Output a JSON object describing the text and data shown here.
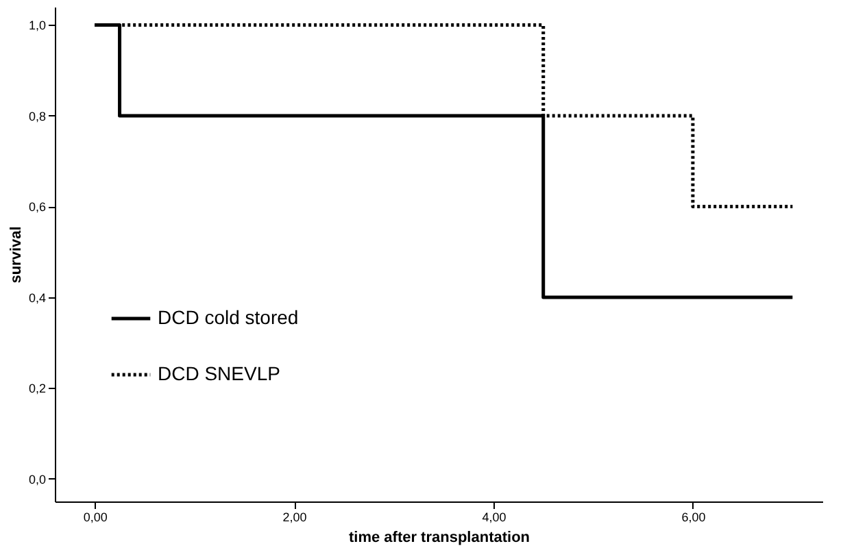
{
  "chart_data": {
    "type": "step",
    "xlabel": "time after transplantation",
    "ylabel": "survival",
    "xlim": [
      -0.4,
      7.3
    ],
    "ylim": [
      -0.05,
      1.04
    ],
    "xticks": [
      {
        "value": 0,
        "label": "0,00"
      },
      {
        "value": 2,
        "label": "2,00"
      },
      {
        "value": 4,
        "label": "4,00"
      },
      {
        "value": 6,
        "label": "6,00"
      }
    ],
    "yticks": [
      {
        "value": 0,
        "label": "0,0"
      },
      {
        "value": 0.2,
        "label": "0,2"
      },
      {
        "value": 0.4,
        "label": "0,4"
      },
      {
        "value": 0.6,
        "label": "0,6"
      },
      {
        "value": 0.8,
        "label": "0,8"
      },
      {
        "value": 1,
        "label": "1,0"
      }
    ],
    "grid": false,
    "legend": "left",
    "marker": "none",
    "series": [
      {
        "name": "DCD cold stored",
        "color": "#000000",
        "line_style": "solid",
        "x": [
          0,
          0.25,
          4.5,
          7.0
        ],
        "values": [
          1,
          0.8,
          0.4,
          0.4
        ]
      },
      {
        "name": "DCD SNEVLP",
        "color": "#000000",
        "line_style": "dotted",
        "x": [
          0,
          4.5,
          6.0,
          7.0
        ],
        "values": [
          1,
          0.8,
          0.6,
          0.6
        ]
      }
    ]
  }
}
